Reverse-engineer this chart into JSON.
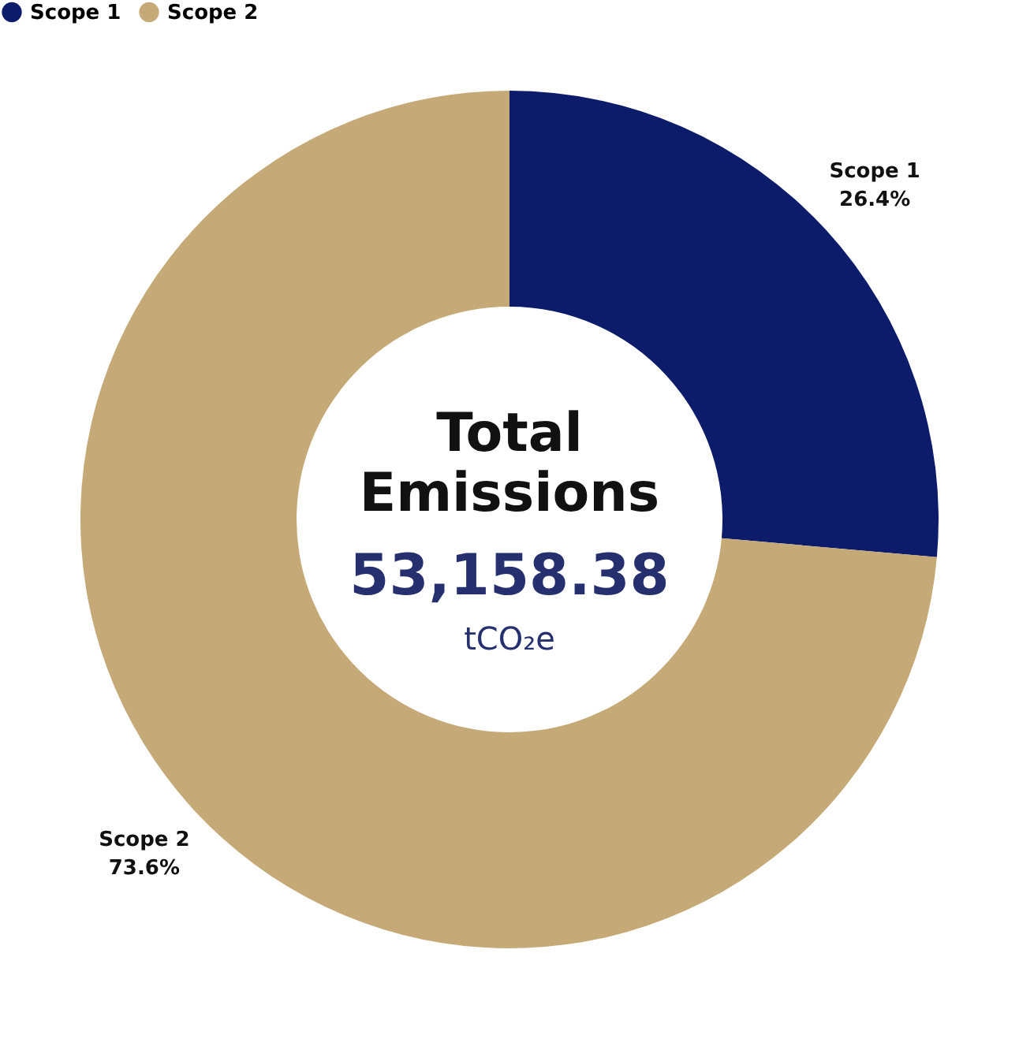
{
  "chart_data": {
    "type": "donut",
    "categories": [
      "Scope 1",
      "Scope 2"
    ],
    "values": [
      26.4,
      73.6
    ],
    "colors": [
      "#0c1c6a",
      "#c5aa78"
    ],
    "value_labels": [
      "26.4%",
      "73.6%"
    ],
    "legend": "top",
    "annotations": [
      "Total Emissions",
      "53,158.38",
      "tCO₂e"
    ]
  }
}
